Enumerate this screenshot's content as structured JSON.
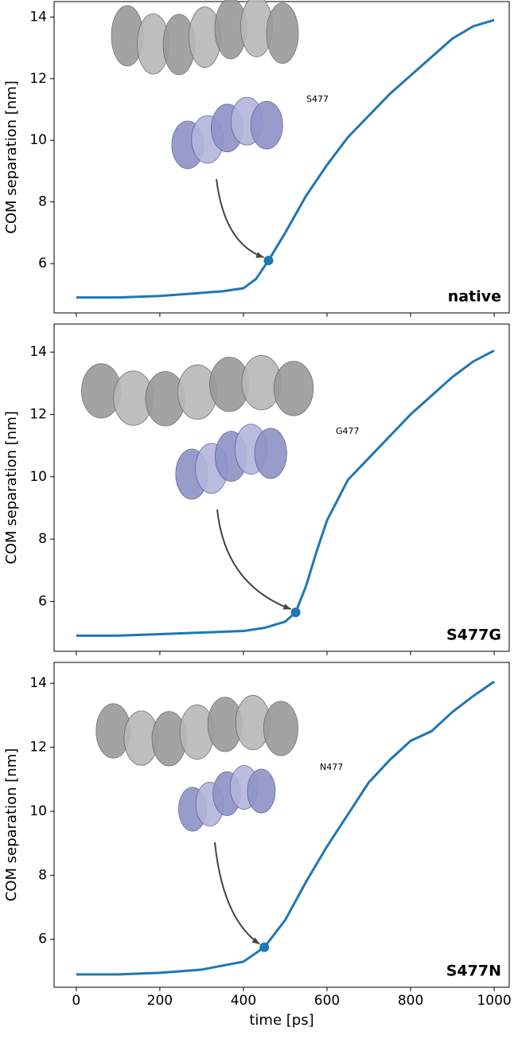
{
  "chart_data": [
    {
      "type": "line",
      "panel_label": "native",
      "ylabel": "COM separation [nm]",
      "x": [
        0,
        100,
        200,
        300,
        350,
        400,
        430,
        460,
        500,
        550,
        600,
        650,
        700,
        750,
        800,
        850,
        900,
        950,
        1000
      ],
      "series": [
        {
          "name": "native",
          "color": "#1f77b4",
          "values": [
            4.9,
            4.9,
            4.95,
            5.05,
            5.1,
            5.2,
            5.5,
            6.1,
            7.0,
            8.2,
            9.2,
            10.1,
            10.8,
            11.5,
            12.1,
            12.7,
            13.3,
            13.7,
            13.9
          ]
        }
      ],
      "annotation": {
        "text": "S477",
        "x": 460,
        "y": 6.1
      },
      "xlim": [
        -53,
        1036
      ],
      "xticks": [
        0,
        200,
        400,
        600,
        800,
        1000
      ],
      "ylim": [
        4.4,
        14.5
      ],
      "yticks": [
        6,
        8,
        10,
        12,
        14
      ]
    },
    {
      "type": "line",
      "panel_label": "S477G",
      "ylabel": "COM separation [nm]",
      "x": [
        0,
        100,
        200,
        300,
        400,
        450,
        500,
        525,
        550,
        575,
        600,
        650,
        700,
        750,
        800,
        850,
        900,
        950,
        1000
      ],
      "series": [
        {
          "name": "S477G",
          "color": "#1f77b4",
          "values": [
            4.9,
            4.9,
            4.95,
            5.0,
            5.05,
            5.15,
            5.35,
            5.65,
            6.5,
            7.6,
            8.6,
            9.9,
            10.6,
            11.3,
            12.0,
            12.6,
            13.2,
            13.7,
            14.05
          ]
        }
      ],
      "annotation": {
        "text": "G477",
        "x": 525,
        "y": 5.65
      },
      "xlim": [
        -53,
        1036
      ],
      "xticks": [
        0,
        200,
        400,
        600,
        800,
        1000
      ],
      "ylim": [
        4.4,
        14.9
      ],
      "yticks": [
        6,
        8,
        10,
        12,
        14
      ]
    },
    {
      "type": "line",
      "panel_label": "S477N",
      "ylabel": "COM separation [nm]",
      "xlabel": "time [ps]",
      "x": [
        0,
        100,
        200,
        300,
        400,
        450,
        500,
        550,
        600,
        650,
        700,
        750,
        800,
        850,
        900,
        950,
        1000
      ],
      "series": [
        {
          "name": "S477N",
          "color": "#1f77b4",
          "values": [
            4.9,
            4.9,
            4.95,
            5.05,
            5.3,
            5.75,
            6.6,
            7.8,
            8.9,
            9.9,
            10.9,
            11.6,
            12.2,
            12.5,
            13.1,
            13.6,
            14.05
          ]
        }
      ],
      "annotation": {
        "text": "N477",
        "x": 450,
        "y": 5.75
      },
      "xlim": [
        -53,
        1036
      ],
      "xticks": [
        0,
        200,
        400,
        600,
        800,
        1000
      ],
      "ylim": [
        4.5,
        14.65
      ],
      "yticks": [
        6,
        8,
        10,
        12,
        14
      ]
    }
  ]
}
